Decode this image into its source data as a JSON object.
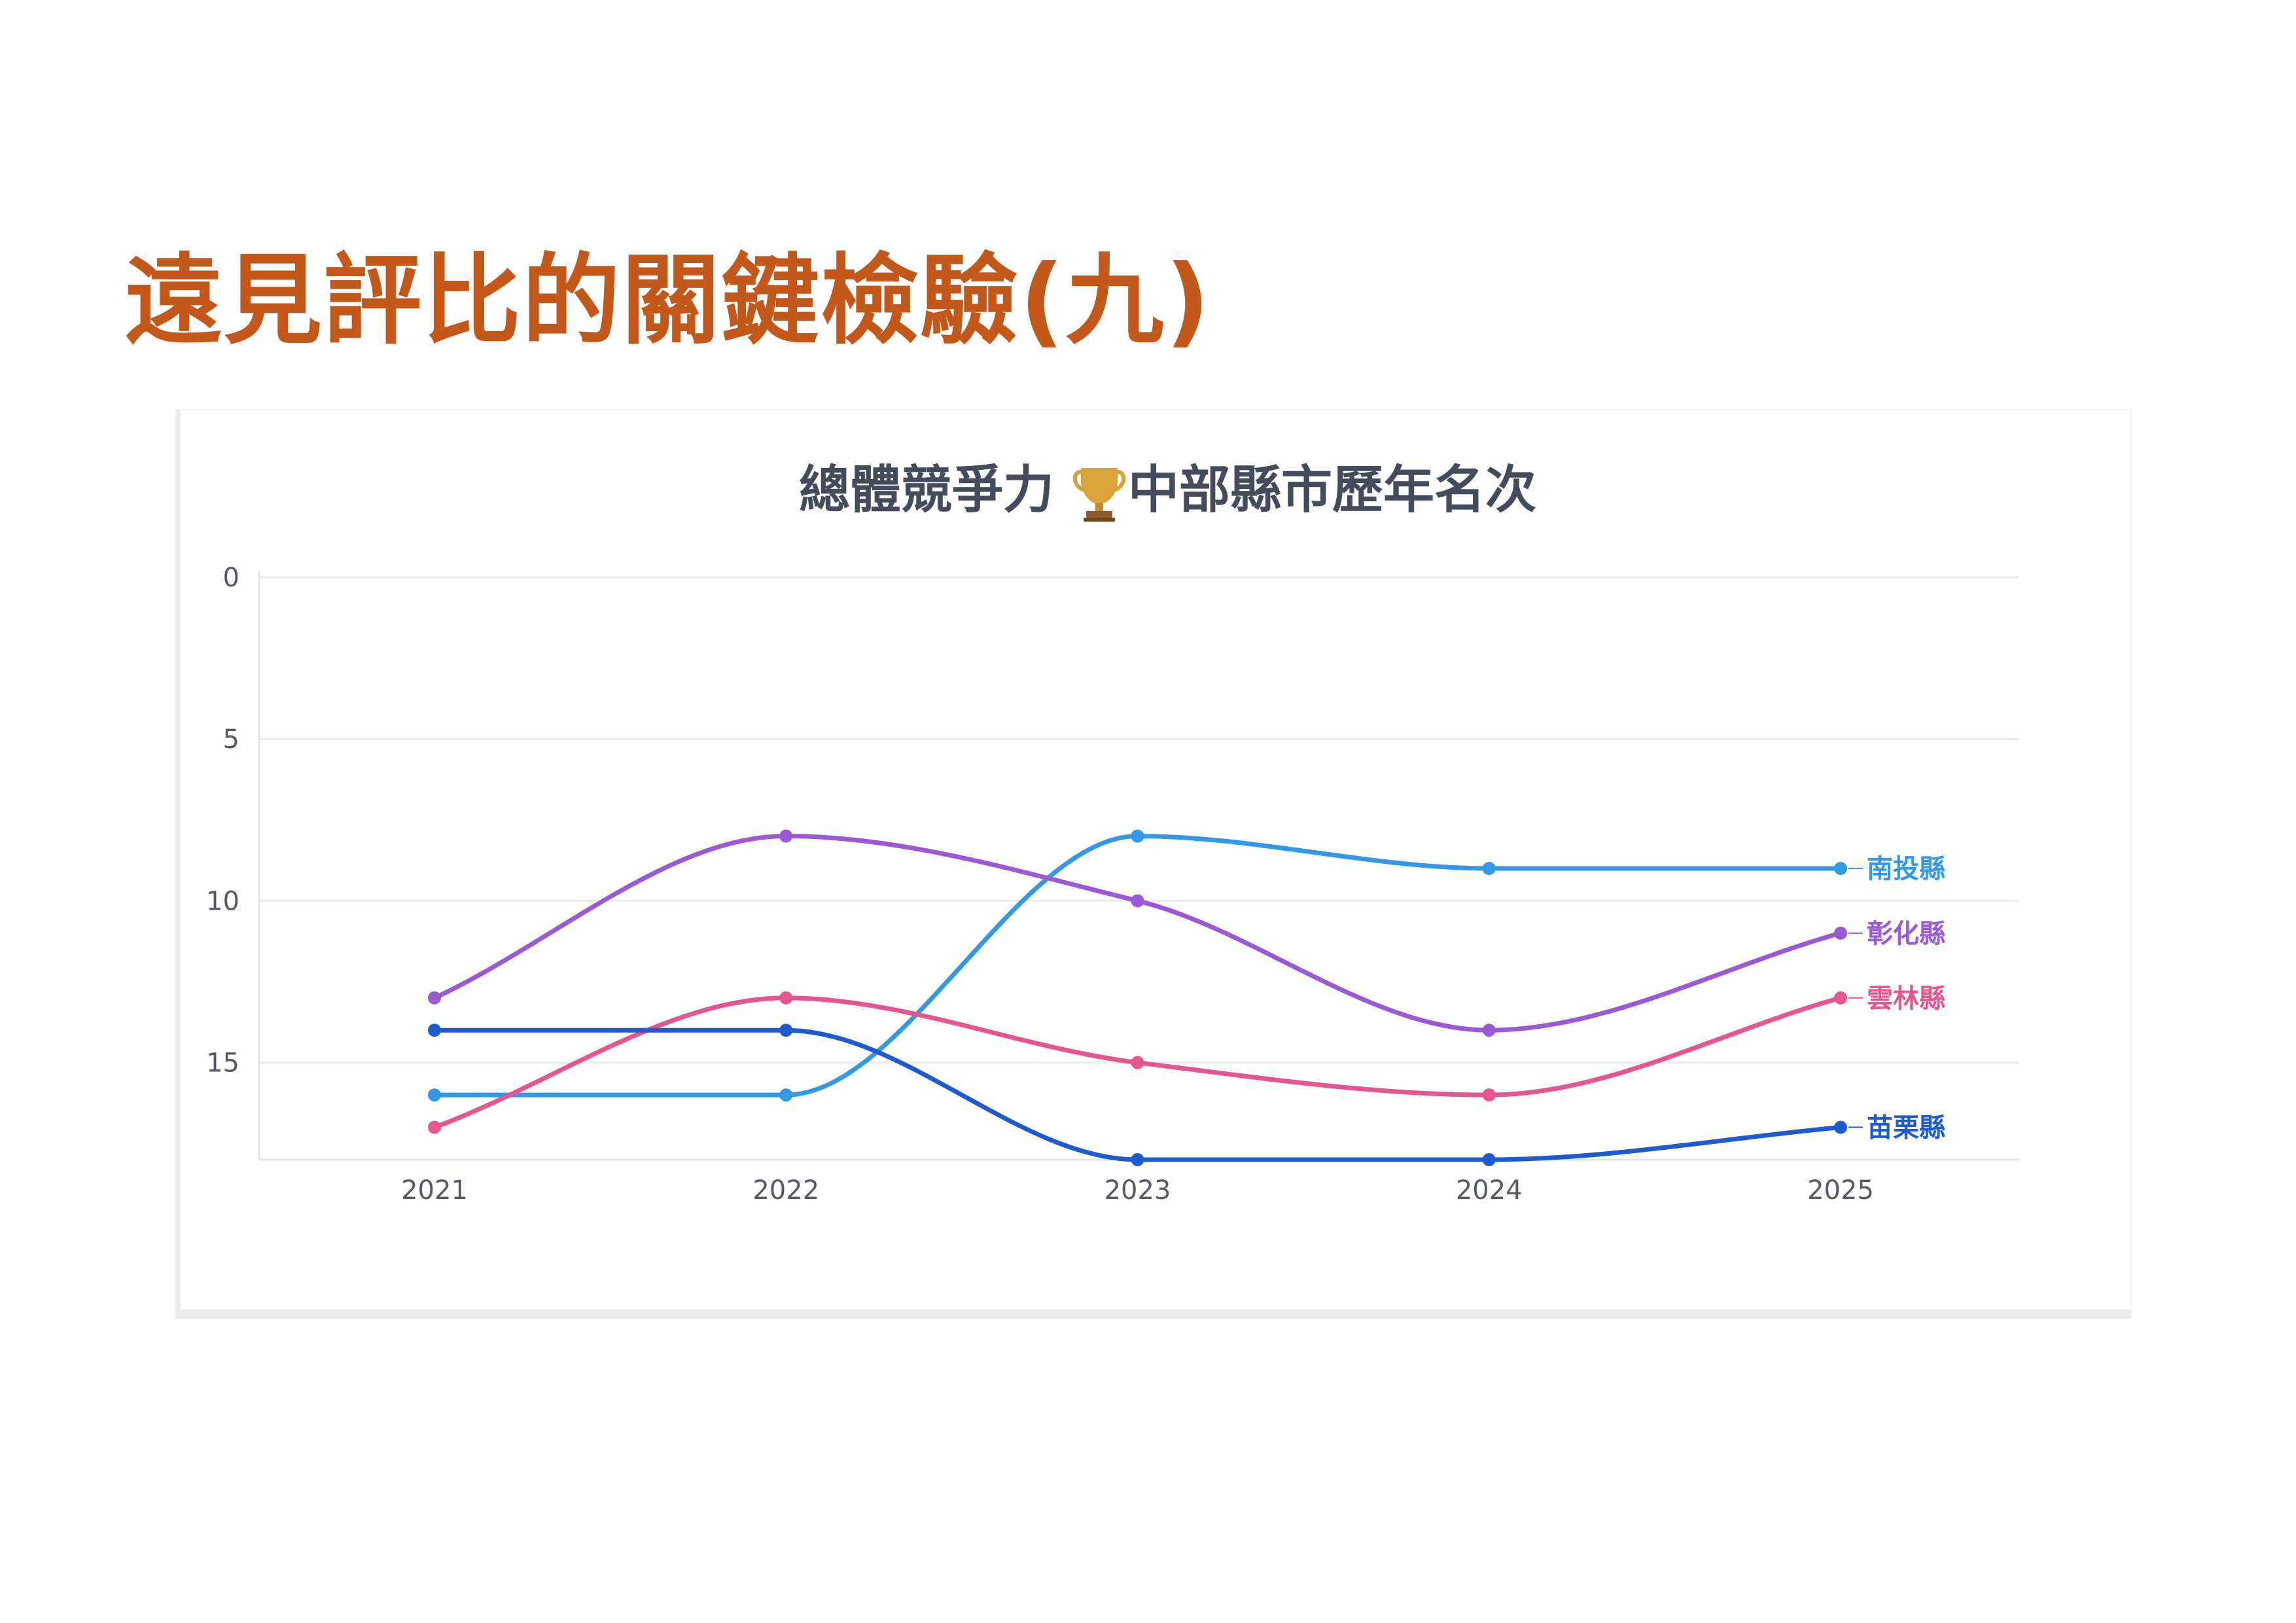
{
  "slide": {
    "title": "遠見評比的關鍵檢驗(九)"
  },
  "chart_data": {
    "type": "line",
    "title": "總體競爭力",
    "title_icon": "trophy-icon",
    "title_suffix": "中部縣市歷年名次",
    "xlabel": "",
    "ylabel": "",
    "categories": [
      "2021",
      "2022",
      "2023",
      "2024",
      "2025"
    ],
    "y_reversed": true,
    "ylim": [
      0,
      18
    ],
    "yticks": [
      0,
      5,
      10,
      15
    ],
    "grid": true,
    "legend": "end-of-line labels",
    "series": [
      {
        "name": "南投縣",
        "color": "#3399e6",
        "values": [
          16,
          16,
          8,
          9,
          9
        ]
      },
      {
        "name": "彰化縣",
        "color": "#9b59d6",
        "values": [
          13,
          8,
          10,
          14,
          11
        ]
      },
      {
        "name": "雲林縣",
        "color": "#e5558f",
        "values": [
          17,
          13,
          15,
          16,
          13
        ]
      },
      {
        "name": "苗栗縣",
        "color": "#1f5bd0",
        "values": [
          14,
          14,
          18,
          18,
          17
        ]
      }
    ]
  }
}
